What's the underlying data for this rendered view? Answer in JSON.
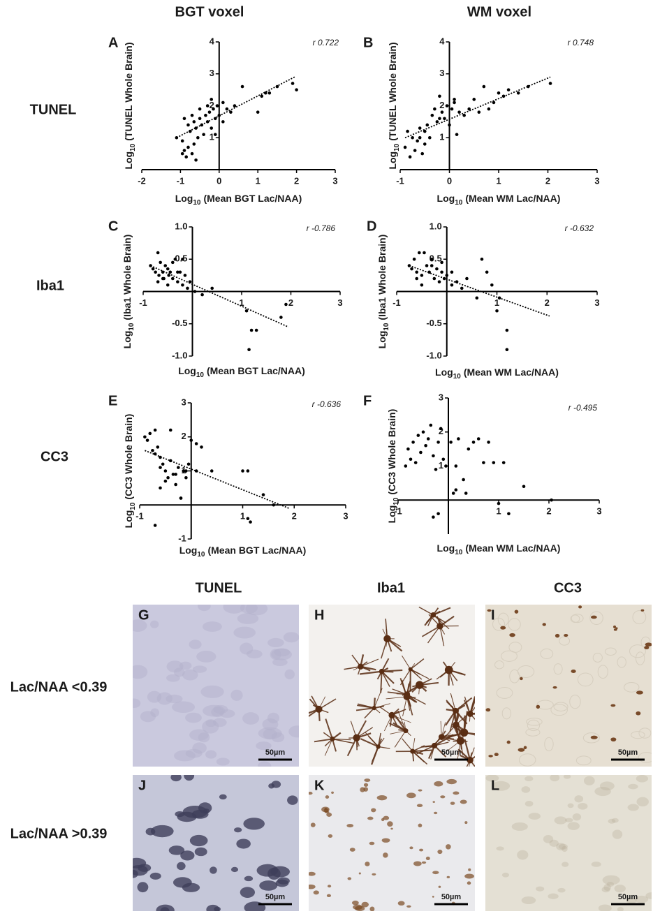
{
  "column_headers": [
    "BGT voxel",
    "WM voxel"
  ],
  "row_labels": [
    "TUNEL",
    "Iba1",
    "CC3"
  ],
  "chart_data": [
    {
      "type": "scatter",
      "panel_label": "A",
      "annotation": "r 0.722",
      "color": "#000000",
      "xlabel": {
        "base": "Log",
        "sub": "10",
        "text": "(Mean BGT Lac/NAA)"
      },
      "ylabel": {
        "base": "Log",
        "sub": "10",
        "text": "(TUNEL Whole Brain)"
      },
      "xlim": [
        -2,
        3
      ],
      "ylim": [
        0,
        4
      ],
      "xticks": [
        -2,
        -1,
        0,
        1,
        2,
        3
      ],
      "yticks": [
        1,
        2,
        3,
        4
      ],
      "x": [
        -1.1,
        -0.95,
        -0.9,
        -0.85,
        -0.8,
        -0.75,
        -0.7,
        -0.65,
        -0.6,
        -0.55,
        -0.5,
        -0.45,
        -0.4,
        -0.35,
        -0.3,
        -0.25,
        -0.2,
        -0.15,
        -0.1,
        -0.05,
        -0.9,
        -0.8,
        -0.7,
        -0.6,
        -0.5,
        -0.3,
        -0.2,
        0.0,
        -0.1,
        -0.95,
        -0.65,
        0.1,
        0.2,
        0.3,
        0.4,
        0.1,
        0.6,
        1.0,
        1.1,
        1.2,
        1.3,
        1.5,
        1.9,
        2.0
      ],
      "y": [
        1.0,
        0.9,
        0.6,
        0.4,
        0.7,
        1.2,
        0.5,
        0.8,
        1.3,
        1.0,
        1.6,
        1.4,
        1.1,
        1.7,
        2.0,
        1.8,
        2.2,
        1.9,
        1.6,
        2.0,
        1.6,
        1.4,
        1.7,
        0.3,
        1.9,
        1.5,
        1.3,
        1.7,
        1.1,
        0.5,
        1.5,
        2.1,
        1.9,
        1.8,
        2.0,
        1.5,
        2.6,
        1.8,
        2.3,
        2.4,
        2.4,
        2.6,
        2.7,
        2.5
      ],
      "trendline": {
        "x": [
          -1.1,
          1.95
        ],
        "y": [
          1.0,
          2.9
        ]
      }
    },
    {
      "type": "scatter",
      "panel_label": "B",
      "annotation": "r 0.748",
      "color": "#000000",
      "xlabel": {
        "base": "Log",
        "sub": "10",
        "text": "(Mean WM Lac/NAA)"
      },
      "ylabel": {
        "base": "Log",
        "sub": "10",
        "text": "(TUNEL Whole Brain)"
      },
      "xlim": [
        -1,
        3
      ],
      "ylim": [
        0,
        4
      ],
      "xticks": [
        -1,
        0,
        1,
        2,
        3
      ],
      "yticks": [
        1,
        2,
        3,
        4
      ],
      "x": [
        -0.9,
        -0.85,
        -0.8,
        -0.75,
        -0.7,
        -0.65,
        -0.6,
        -0.55,
        -0.5,
        -0.45,
        -0.4,
        -0.35,
        -0.3,
        -0.25,
        -0.2,
        -0.15,
        -0.1,
        -0.05,
        0.0,
        0.05,
        0.1,
        0.15,
        0.2,
        0.3,
        0.4,
        0.5,
        0.6,
        0.7,
        0.8,
        0.9,
        1.0,
        1.1,
        1.2,
        1.4,
        1.6,
        2.05,
        -0.6,
        -0.5,
        -0.2,
        0.1
      ],
      "y": [
        0.7,
        1.2,
        0.4,
        1.0,
        0.6,
        0.9,
        1.3,
        0.5,
        0.8,
        1.4,
        1.0,
        1.7,
        1.9,
        1.5,
        2.3,
        1.8,
        1.6,
        2.0,
        1.4,
        1.9,
        2.1,
        1.1,
        1.8,
        1.7,
        1.9,
        2.2,
        1.8,
        2.6,
        1.9,
        2.1,
        2.4,
        2.3,
        2.5,
        2.4,
        2.6,
        2.7,
        1.0,
        1.2,
        1.6,
        2.2
      ],
      "trendline": {
        "x": [
          -0.9,
          2.05
        ],
        "y": [
          1.0,
          2.9
        ]
      }
    },
    {
      "type": "scatter",
      "panel_label": "C",
      "annotation": "r -0.786",
      "color": "#000000",
      "xlabel": {
        "base": "Log",
        "sub": "10",
        "text": "(Mean BGT Lac/NAA)"
      },
      "ylabel": {
        "base": "Log",
        "sub": "10",
        "text": "(Iba1 Whole Brain)"
      },
      "xlim": [
        -1,
        3
      ],
      "ylim": [
        -1,
        1
      ],
      "xticks": [
        -1,
        1,
        2,
        3
      ],
      "yticks": [
        {
          "value": 1,
          "label": "1.0"
        },
        0.5,
        -0.5,
        {
          "value": -1,
          "label": "-1.0"
        }
      ],
      "x": [
        -0.85,
        -0.8,
        -0.75,
        -0.7,
        -0.68,
        -0.65,
        -0.6,
        -0.58,
        -0.55,
        -0.5,
        -0.48,
        -0.45,
        -0.4,
        -0.35,
        -0.3,
        -0.25,
        -0.2,
        -0.15,
        -0.1,
        -0.05,
        -0.7,
        -0.6,
        -0.5,
        -0.4,
        -0.3,
        -0.2,
        0.05,
        0.2,
        0.4,
        1.1,
        1.2,
        1.15,
        1.3,
        1.8,
        1.9
      ],
      "y": [
        0.4,
        0.35,
        0.3,
        0.6,
        0.25,
        0.45,
        0.3,
        0.2,
        0.4,
        0.35,
        0.25,
        0.3,
        0.2,
        0.5,
        0.15,
        0.3,
        0.1,
        0.25,
        0.05,
        0.15,
        0.15,
        0.2,
        0.1,
        0.45,
        0.3,
        0.5,
        0.0,
        -0.05,
        0.05,
        -0.3,
        -0.6,
        -0.9,
        -0.6,
        -0.4,
        -0.2
      ],
      "trendline": {
        "x": [
          -0.85,
          1.95
        ],
        "y": [
          0.4,
          -0.55
        ]
      }
    },
    {
      "type": "scatter",
      "panel_label": "D",
      "annotation": "r -0.632",
      "color": "#000000",
      "xlabel": {
        "base": "Log",
        "sub": "10",
        "text": "(Mean WM Lac/NAA)"
      },
      "ylabel": {
        "base": "Log",
        "sub": "10",
        "text": "(Iba1 Whole Brain)"
      },
      "xlim": [
        -1,
        3
      ],
      "ylim": [
        -1,
        1
      ],
      "xticks": [
        -1,
        1,
        2,
        3
      ],
      "yticks": [
        {
          "value": 1,
          "label": "1.0"
        },
        0.5,
        -0.5,
        {
          "value": -1,
          "label": "-1.0"
        }
      ],
      "x": [
        -0.75,
        -0.7,
        -0.65,
        -0.6,
        -0.55,
        -0.5,
        -0.45,
        -0.4,
        -0.35,
        -0.3,
        -0.25,
        -0.2,
        -0.15,
        -0.1,
        -0.05,
        0.0,
        0.1,
        0.2,
        0.3,
        0.4,
        -0.6,
        -0.5,
        -0.3,
        -0.1,
        0.1,
        0.6,
        0.7,
        0.8,
        0.9,
        1.0,
        1.05,
        1.2,
        1.2
      ],
      "y": [
        0.4,
        0.35,
        0.5,
        0.3,
        0.6,
        0.25,
        0.6,
        0.4,
        0.3,
        0.5,
        0.2,
        0.35,
        0.15,
        0.3,
        0.2,
        0.25,
        0.1,
        0.15,
        0.05,
        0.2,
        0.2,
        0.1,
        0.4,
        0.45,
        0.3,
        -0.1,
        0.5,
        0.3,
        0.1,
        -0.3,
        -0.1,
        -0.6,
        -0.9
      ],
      "trendline": {
        "x": [
          -0.75,
          2.05
        ],
        "y": [
          0.4,
          -0.38
        ]
      }
    },
    {
      "type": "scatter",
      "panel_label": "E",
      "annotation": "r -0.636",
      "color": "#000000",
      "xlabel": {
        "base": "Log",
        "sub": "10",
        "text": "(Mean BGT Lac/NAA)"
      },
      "ylabel": {
        "base": "Log",
        "sub": "10",
        "text": "(CC3 Whole Brain)"
      },
      "xlim": [
        -1,
        3
      ],
      "ylim": [
        -1,
        3
      ],
      "xticks": [
        -1,
        1,
        2,
        3
      ],
      "yticks": [
        -1,
        1,
        2,
        3
      ],
      "x": [
        -0.9,
        -0.85,
        -0.8,
        -0.75,
        -0.7,
        -0.65,
        -0.6,
        -0.55,
        -0.5,
        -0.45,
        -0.4,
        -0.35,
        -0.3,
        -0.25,
        -0.2,
        -0.15,
        -0.1,
        -0.05,
        -0.7,
        -0.6,
        -0.5,
        -0.4,
        -0.3,
        -0.6,
        -0.2,
        -0.1,
        0.0,
        0.1,
        0.2,
        0.1,
        0.4,
        1.0,
        1.1,
        1.4,
        1.1,
        1.15,
        1.6,
        -0.7
      ],
      "y": [
        2.0,
        1.9,
        2.1,
        1.6,
        2.2,
        1.7,
        1.4,
        1.2,
        1.0,
        0.8,
        1.3,
        0.9,
        0.6,
        1.1,
        0.2,
        1.0,
        0.8,
        1.2,
        1.5,
        1.1,
        0.7,
        2.2,
        0.9,
        0.5,
        0.2,
        1.0,
        1.9,
        1.8,
        1.7,
        1.0,
        1.0,
        1.0,
        1.0,
        0.3,
        -0.4,
        -0.5,
        0.0,
        -0.6
      ],
      "trendline": {
        "x": [
          -0.9,
          1.9
        ],
        "y": [
          1.6,
          -0.1
        ]
      }
    },
    {
      "type": "scatter",
      "panel_label": "F",
      "annotation": "r -0.495",
      "color": "#000000",
      "xlabel": {
        "base": "Log",
        "sub": "10",
        "text": "(Mean WM Lac/NAA)"
      },
      "ylabel": {
        "base": "Log",
        "sub": "10",
        "text": "(CC3 Whole Brain)"
      },
      "xlim": [
        -1,
        3
      ],
      "ylim": [
        -1,
        3
      ],
      "xticks": [
        -1,
        1,
        2,
        3
      ],
      "yticks": [
        1,
        2,
        3
      ],
      "x": [
        -0.85,
        -0.8,
        -0.75,
        -0.7,
        -0.65,
        -0.6,
        -0.55,
        -0.5,
        -0.45,
        -0.4,
        -0.35,
        -0.3,
        -0.25,
        -0.2,
        -0.15,
        -0.1,
        -0.05,
        0.05,
        0.1,
        0.15,
        0.2,
        0.3,
        0.4,
        0.5,
        0.6,
        0.7,
        0.8,
        0.9,
        1.1,
        1.5,
        2.05,
        -0.3,
        -0.2,
        1.0,
        1.2,
        0.15,
        0.35
      ],
      "y": [
        1.0,
        1.5,
        1.2,
        1.7,
        1.1,
        1.9,
        1.4,
        2.0,
        1.6,
        1.8,
        2.2,
        1.3,
        0.9,
        1.7,
        2.1,
        1.2,
        1.0,
        1.7,
        0.2,
        1.0,
        1.8,
        0.6,
        1.5,
        1.7,
        1.8,
        1.1,
        1.7,
        1.1,
        1.1,
        0.4,
        0.0,
        -0.5,
        -0.4,
        -0.1,
        -0.4,
        0.3,
        0.2
      ]
    }
  ],
  "micrographs": {
    "column_headers": [
      "TUNEL",
      "Iba1",
      "CC3"
    ],
    "row_labels": [
      "Lac/NAA <0.39",
      "Lac/NAA >0.39"
    ],
    "panels": [
      {
        "label": "G",
        "scale_bar": "50µm"
      },
      {
        "label": "H",
        "scale_bar": "50µm"
      },
      {
        "label": "I",
        "scale_bar": "50µm"
      },
      {
        "label": "J",
        "scale_bar": "50µm"
      },
      {
        "label": "K",
        "scale_bar": "50µm"
      },
      {
        "label": "L",
        "scale_bar": "50µm"
      }
    ]
  }
}
